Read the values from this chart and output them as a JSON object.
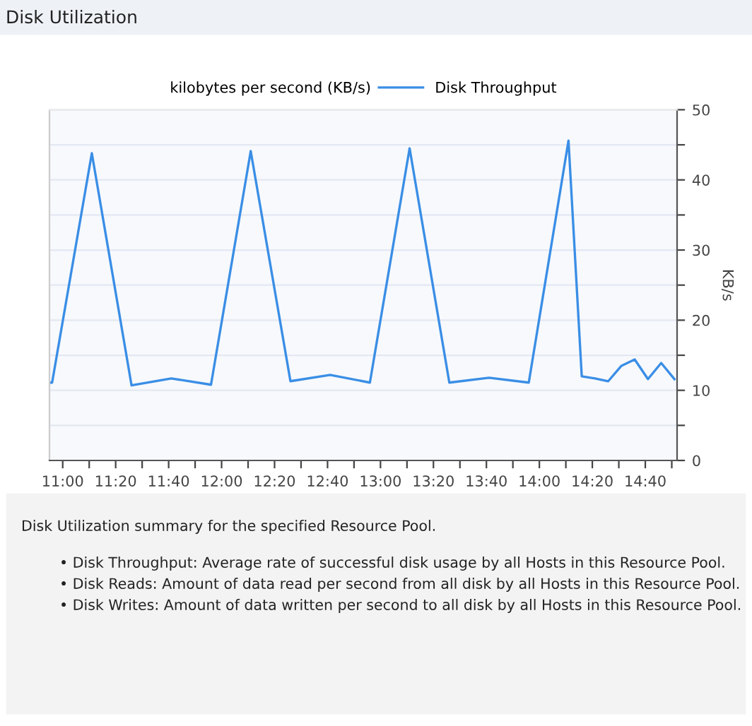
{
  "chart_data": {
    "type": "line",
    "title": "Disk Utilization",
    "legend_title": "kilobytes per second (KB/s)",
    "ylabel": "KB/s",
    "x": [
      10.9167,
      10.9333,
      11.1833,
      11.4333,
      11.6833,
      11.9333,
      12.1833,
      12.4333,
      12.6833,
      12.9333,
      13.1833,
      13.4333,
      13.6833,
      13.9333,
      14.1833,
      14.2667,
      14.35,
      14.4333,
      14.5167,
      14.6,
      14.6833,
      14.7667,
      14.85
    ],
    "series": [
      {
        "name": "Disk Throughput",
        "color": "#3a8ee6",
        "values": [
          11.1,
          11.1,
          43.8,
          10.7,
          11.7,
          10.8,
          44.1,
          11.3,
          12.2,
          11.1,
          44.5,
          11.1,
          11.8,
          11.1,
          45.6,
          12.0,
          11.7,
          11.3,
          13.5,
          14.4,
          11.6,
          13.9,
          11.6
        ]
      }
    ],
    "xlim": [
      10.9167,
      14.8667
    ],
    "ylim": [
      0,
      50
    ],
    "xticks": [
      {
        "value": 11,
        "label": "11:00"
      },
      {
        "value": 11.1667,
        "label": null
      },
      {
        "value": 11.3333,
        "label": "11:20"
      },
      {
        "value": 11.5,
        "label": null
      },
      {
        "value": 11.6667,
        "label": "11:40"
      },
      {
        "value": 11.8333,
        "label": null
      },
      {
        "value": 12,
        "label": "12:00"
      },
      {
        "value": 12.1667,
        "label": null
      },
      {
        "value": 12.3333,
        "label": "12:20"
      },
      {
        "value": 12.5,
        "label": null
      },
      {
        "value": 12.6667,
        "label": "12:40"
      },
      {
        "value": 12.8333,
        "label": null
      },
      {
        "value": 13,
        "label": "13:00"
      },
      {
        "value": 13.1667,
        "label": null
      },
      {
        "value": 13.3333,
        "label": "13:20"
      },
      {
        "value": 13.5,
        "label": null
      },
      {
        "value": 13.6667,
        "label": "13:40"
      },
      {
        "value": 13.8333,
        "label": null
      },
      {
        "value": 14,
        "label": "14:00"
      },
      {
        "value": 14.1667,
        "label": null
      },
      {
        "value": 14.3333,
        "label": "14:20"
      },
      {
        "value": 14.5,
        "label": null
      },
      {
        "value": 14.6667,
        "label": "14:40"
      },
      {
        "value": 14.8333,
        "label": null
      }
    ],
    "yticks": [
      0,
      {
        "value": 5,
        "label": null
      },
      10,
      {
        "value": 15,
        "label": null
      },
      20,
      {
        "value": 25,
        "label": null
      },
      30,
      {
        "value": 35,
        "label": null
      },
      40,
      {
        "value": 45,
        "label": null
      },
      50
    ],
    "grid": "y",
    "legend": "top",
    "marker": "none",
    "line_style": "solid",
    "annotations": [
      "Disk Utilization summary for the specified Resource Pool.",
      "• Disk Throughput: Average rate of successful disk usage by all Hosts in this Resource Pool.",
      "• Disk Reads: Amount of data read per second from all disk by all Hosts in this Resource Pool.",
      "• Disk Writes: Amount of data written per second to all disk by all Hosts in this Resource Pool."
    ]
  }
}
